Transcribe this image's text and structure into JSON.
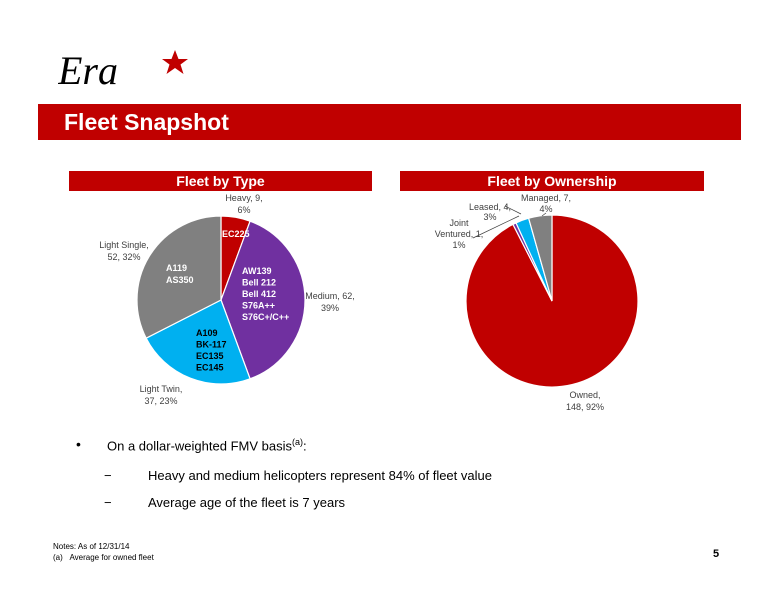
{
  "logo": {
    "text": "Era"
  },
  "title": "Fleet Snapshot",
  "chart_data": [
    {
      "type": "pie",
      "title": "Fleet by Type",
      "slices": [
        {
          "label": "Heavy",
          "value": 9,
          "percent": "6%",
          "color": "#c00000",
          "label_text": "Heavy, 9,",
          "label_pct": "6%",
          "inner": [
            "EC225"
          ],
          "inner_color": "#ffffff"
        },
        {
          "label": "Medium",
          "value": 62,
          "percent": "39%",
          "color": "#7030a0",
          "label_text": "Medium, 62,",
          "label_pct": "39%",
          "inner": [
            "AW139",
            "Bell 212",
            "Bell 412",
            "S76A++",
            "S76C+/C++"
          ],
          "inner_color": "#ffffff"
        },
        {
          "label": "Light Twin",
          "value": 37,
          "percent": "23%",
          "color": "#00b0f0",
          "label_text": "Light Twin,",
          "label_pct": "37, 23%",
          "inner": [
            "A109",
            "BK-117",
            "EC135",
            "EC145"
          ],
          "inner_color": "#000000"
        },
        {
          "label": "Light Single",
          "value": 52,
          "percent": "32%",
          "color": "#808080",
          "label_text": "Light Single,",
          "label_pct": "52, 32%",
          "inner": [
            "A119",
            "AS350"
          ],
          "inner_color": "#ffffff"
        }
      ]
    },
    {
      "type": "pie",
      "title": "Fleet by Ownership",
      "slices": [
        {
          "label": "Owned",
          "value": 148,
          "percent": "92%",
          "color": "#c00000",
          "label_text": "Owned,",
          "label_pct": "148, 92%"
        },
        {
          "label": "Joint Ventured",
          "value": 1,
          "percent": "1%",
          "color": "#7030a0",
          "label_text": "Joint",
          "label_text2": "Ventured, 1,",
          "label_pct": "1%"
        },
        {
          "label": "Leased",
          "value": 4,
          "percent": "3%",
          "color": "#00b0f0",
          "label_text": "Leased, 4,",
          "label_pct": "3%"
        },
        {
          "label": "Managed",
          "value": 7,
          "percent": "4%",
          "color": "#808080",
          "label_text": "Managed, 7,",
          "label_pct": "4%"
        }
      ]
    }
  ],
  "bullets": {
    "main": "On a dollar-weighted FMV basis",
    "main_sup": "(a)",
    "main_suffix": ":",
    "dash": "−",
    "dot": "•",
    "sub1": "Heavy and medium helicopters represent 84% of fleet value",
    "sub2": "Average age of the fleet is 7 years"
  },
  "notes": {
    "line1": "Notes: As of 12/31/14",
    "line2_marker": "(a)",
    "line2": "Average for owned fleet"
  },
  "page_number": "5"
}
